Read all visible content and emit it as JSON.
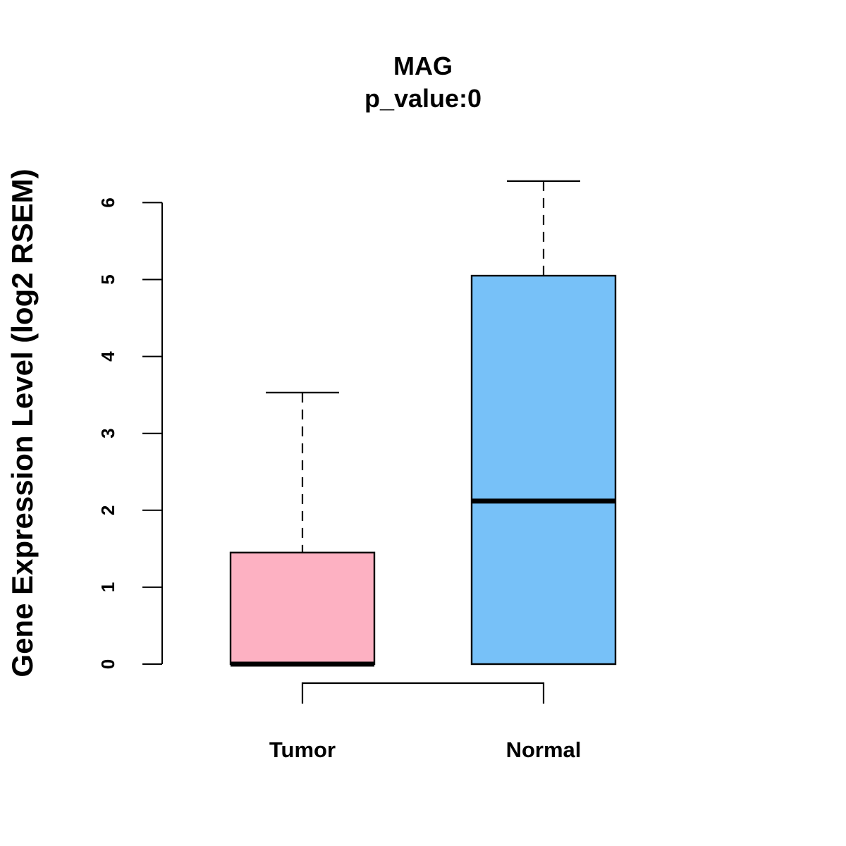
{
  "chart_data": {
    "type": "boxplot",
    "title": "MAG",
    "subtitle": "p_value:0",
    "xlabel": "",
    "ylabel": "Gene Expression Level (log2 RSEM)",
    "ylim": [
      0,
      6.3
    ],
    "y_ticks": [
      "0",
      "1",
      "2",
      "3",
      "4",
      "5",
      "6"
    ],
    "categories": [
      "Tumor",
      "Normal"
    ],
    "grid": false,
    "legend": "none",
    "series": [
      {
        "category": "Tumor",
        "color": "#FDB1C2",
        "whisker_low": 0,
        "q1": 0,
        "median": 0,
        "q3": 1.45,
        "whisker_high": 3.53
      },
      {
        "category": "Normal",
        "color": "#77C1F8",
        "whisker_low": 0,
        "q1": 0,
        "median": 2.12,
        "q3": 5.05,
        "whisker_high": 6.28
      }
    ],
    "comparison_bracket": [
      "Tumor",
      "Normal"
    ]
  }
}
